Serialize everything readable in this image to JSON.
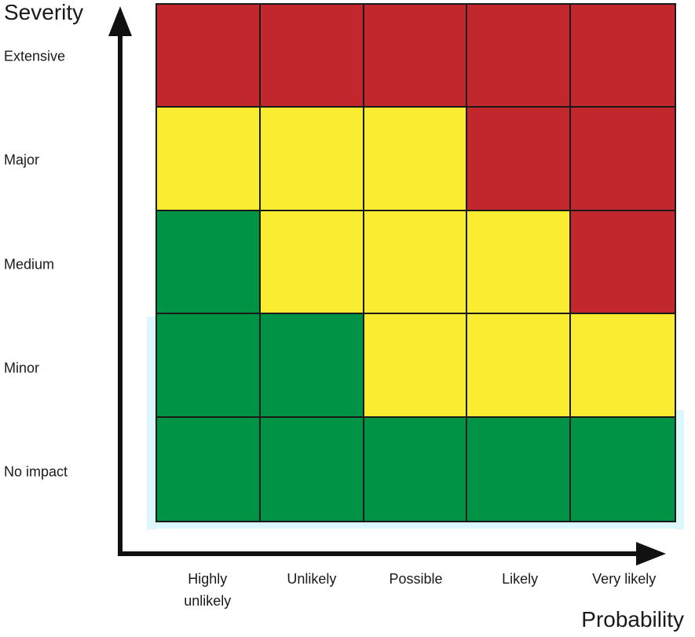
{
  "chart_data": {
    "type": "heatmap",
    "title": "",
    "xlabel": "Probability",
    "ylabel": "Severity",
    "x_categories": [
      "Highly unlikely",
      "Unlikely",
      "Possible",
      "Likely",
      "Very likely"
    ],
    "y_categories": [
      "Extensive",
      "Major",
      "Medium",
      "Minor",
      "No impact"
    ],
    "rows": [
      [
        "high",
        "high",
        "high",
        "high",
        "high"
      ],
      [
        "medium",
        "medium",
        "medium",
        "high",
        "high"
      ],
      [
        "low",
        "medium",
        "medium",
        "medium",
        "high"
      ],
      [
        "low",
        "low",
        "medium",
        "medium",
        "medium"
      ],
      [
        "low",
        "low",
        "low",
        "low",
        "low"
      ]
    ],
    "risk_colors": {
      "high": "#c1272d",
      "medium": "#f9ec31",
      "low": "#009245"
    },
    "grid": {
      "rows": 5,
      "cols": 5,
      "line_color": "#1a1a1a",
      "on": true
    },
    "axis_color": "#111111",
    "legend_position": "none"
  }
}
